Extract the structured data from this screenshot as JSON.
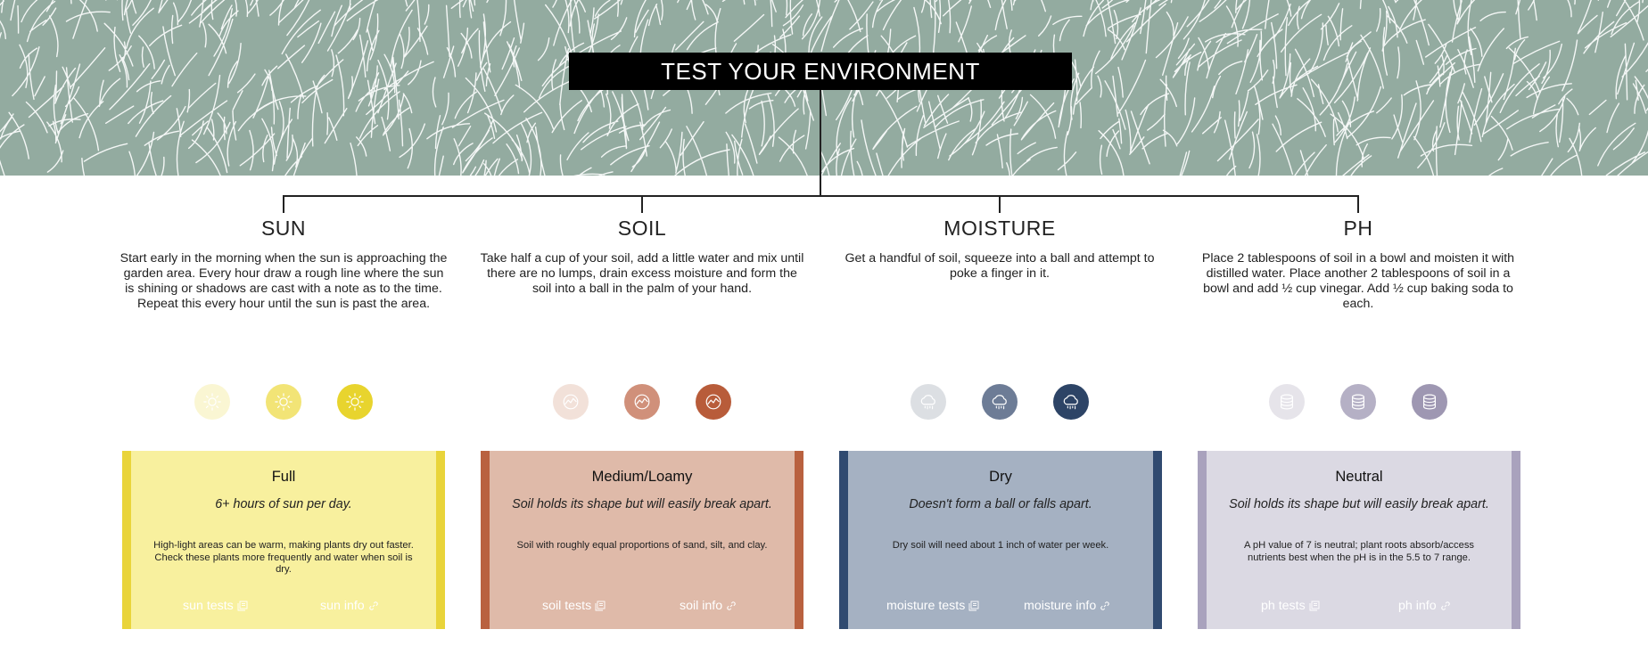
{
  "header": {
    "title": "TEST YOUR ENVIRONMENT"
  },
  "colors": {
    "hero_background": "#93aba0",
    "title_bar": "#000000"
  },
  "sections": [
    {
      "heading": "SUN",
      "instructions": "Start early in the morning when the sun is approaching the garden area. Every hour draw a rough line where the sun is shining or shadows are cast with a note as to the time. Repeat this every hour until the sun is past the area.",
      "icon": "sun-icon",
      "level_colors": [
        "#faf6d3",
        "#f2e476",
        "#e8d42e"
      ],
      "card": {
        "title": "Full",
        "subtitle": "6+ hours of sun per day.",
        "description": "High-light areas can be warm, making plants dry out faster. Check these plants more frequently and water when soil is dry.",
        "tests_link": "sun tests",
        "info_link": "sun info",
        "background": "#f8f09e",
        "accent": "#e9d43a"
      }
    },
    {
      "heading": "SOIL",
      "instructions": "Take half a cup of your soil, add a little water and mix until there are no lumps, drain excess moisture and form the soil into a ball in the palm of your hand.",
      "icon": "soil-icon",
      "level_colors": [
        "#f2e1d9",
        "#d0907a",
        "#b85c3a"
      ],
      "card": {
        "title": "Medium/Loamy",
        "subtitle": "Soil holds its shape but will easily break apart.",
        "description": "Soil with roughly equal proportions of sand, silt, and clay.",
        "tests_link": "soil tests",
        "info_link": "soil info",
        "background": "#dfbaa9",
        "accent": "#b9613f"
      }
    },
    {
      "heading": "MOISTURE",
      "instructions": "Get a handful of soil, squeeze into a ball and attempt to poke a finger in it.",
      "icon": "rain-cloud-icon",
      "level_colors": [
        "#dcdfe3",
        "#6d7c96",
        "#2d4466"
      ],
      "card": {
        "title": "Dry",
        "subtitle": "Doesn't form a ball or falls apart.",
        "description": "Dry soil will need about 1 inch of water per week.",
        "tests_link": "moisture tests",
        "info_link": "moisture info",
        "background": "#a5b1c2",
        "accent": "#304a70"
      }
    },
    {
      "heading": "PH",
      "instructions": "Place 2 tablespoons of soil in a bowl and moisten it with distilled water. Place another 2 tablespoons of soil in a bowl and add ½ cup vinegar. Add ½ cup baking soda to each.",
      "icon": "database-icon",
      "level_colors": [
        "#e6e4ea",
        "#b5b0c5",
        "#9e97b2"
      ],
      "card": {
        "title": "Neutral",
        "subtitle": "Soil holds its shape but will easily break apart.",
        "description": "A pH value of 7 is neutral; plant roots absorb/access nutrients best when the pH is in the 5.5 to 7 range.",
        "tests_link": "ph tests",
        "info_link": "ph info",
        "background": "#dbd9e3",
        "accent": "#a9a2bd"
      }
    }
  ]
}
